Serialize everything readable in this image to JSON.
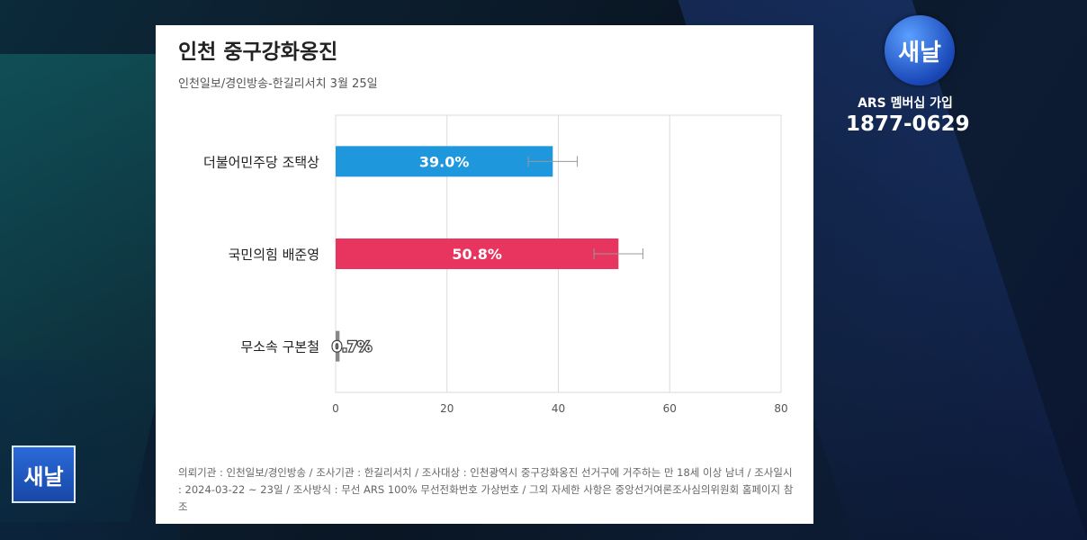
{
  "panel": {
    "title": "인천 중구강화옹진",
    "subtitle": "인천일보/경인방송-한길리서치 3월 25일",
    "footnote": "의뢰기관 : 인천일보/경인방송 / 조사기관 : 한길리서치 / 조사대상 : 인천광역시 중구강화옹진 선거구에 거주하는 만 18세 이상 남녀 / 조사일시 : 2024-03-22 ~ 23일 / 조사방식 : 무선 ARS 100% 무선전화번호 가상번호 / 그외 자세한 사항은 중앙선거여론조사심의위원회 홈페이지 참조"
  },
  "branding": {
    "logo_right_text": "새날",
    "logo_left_text": "새날",
    "ars_text": "ARS 멤버십 가입",
    "phone": "1877-0629"
  },
  "chart_data": {
    "type": "bar",
    "orientation": "horizontal",
    "categories": [
      "더불어민주당 조택상",
      "국민의힘 배준영",
      "무소속 구본철"
    ],
    "values": [
      39.0,
      50.8,
      0.7
    ],
    "value_labels": [
      "39.0%",
      "50.8%",
      "0.7%"
    ],
    "error_margin": [
      4.4,
      4.4,
      0
    ],
    "colors": [
      "#1f97dd",
      "#e83560",
      "#888888"
    ],
    "xlim": [
      0,
      80
    ],
    "xticks": [
      0,
      20,
      40,
      60,
      80
    ],
    "grid": true,
    "title": "인천 중구강화옹진",
    "xlabel": "",
    "ylabel": ""
  }
}
